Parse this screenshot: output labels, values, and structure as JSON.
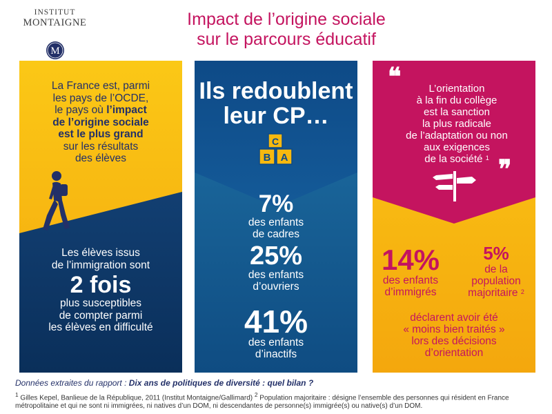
{
  "logo": {
    "line1": "INSTITUT",
    "line2": "MONTAIGNE",
    "seal_letter": "M"
  },
  "title": {
    "line1": "Impact de l’origine sociale",
    "line2": "sur le parcours éducatif"
  },
  "panel_left": {
    "intro": [
      "La France est, parmi",
      "les pays de l’OCDE,",
      "le pays où"
    ],
    "intro_bold": [
      "l’impact",
      "de l’origine sociale",
      "est le plus grand"
    ],
    "intro_end": [
      "sur les résultats",
      "des élèves"
    ],
    "immig_lines": [
      "Les élèves issus",
      "de l’immigration sont"
    ],
    "big": "2 fois",
    "after_lines": [
      "plus susceptibles",
      "de compter parmi",
      "les élèves en difficulté"
    ],
    "icon": "walking-man-icon",
    "colors": {
      "yellow": "#f7b90f",
      "navy": "#0f3a6a"
    }
  },
  "panel_middle": {
    "heading": [
      "Ils redoublent",
      "leur CP…"
    ],
    "blocks_icon": "abc-blocks-icon",
    "block_letters": [
      "B",
      "A",
      "C"
    ],
    "stats": [
      {
        "value": "7%",
        "label": [
          "des enfants",
          "de cadres"
        ]
      },
      {
        "value": "25%",
        "label": [
          "des enfants",
          "d’ouvriers"
        ]
      },
      {
        "value": "41%",
        "label": [
          "des enfants",
          "d’inactifs"
        ]
      }
    ],
    "colors": {
      "top": "#0f4f8f",
      "bottom": "#1e6fa2"
    }
  },
  "panel_right": {
    "quote_lines": [
      "L’orientation",
      "à la fin du collège",
      "est la sanction",
      "la plus radicale",
      "de l’adaptation ou non",
      "aux exigences"
    ],
    "quote_last": "de la société",
    "quote_ref": "1",
    "signpost_icon": "signpost-icon",
    "stat1": {
      "value": "14%",
      "label": [
        "des enfants",
        "d’immigrés"
      ]
    },
    "stat2": {
      "value": "5%",
      "label": [
        "de la",
        "population"
      ],
      "label_last": "majoritaire",
      "ref": "2"
    },
    "conclusion": [
      "déclarent avoir été",
      "« moins bien traités »",
      "lors des décisions",
      "d’orientation"
    ],
    "colors": {
      "magenta": "#c4145f",
      "yellow": "#f7b90f"
    }
  },
  "source": {
    "prefix": "Données extraites du rapport : ",
    "report": "Dix ans de politiques de diversité : quel bilan ?"
  },
  "footnotes": {
    "n1": "1",
    "text1": " Gilles Kepel, Banlieue de la République, 2011 (Institut Montaigne/Gallimard) ",
    "n2": "2",
    "text2": " Population majoritaire : désigne l’ensemble des personnes qui résident en France métropolitaine et qui ne sont ni immigrées, ni natives d’un DOM, ni descendantes de personne(s) immigrée(s) ou native(s) d’un DOM."
  }
}
